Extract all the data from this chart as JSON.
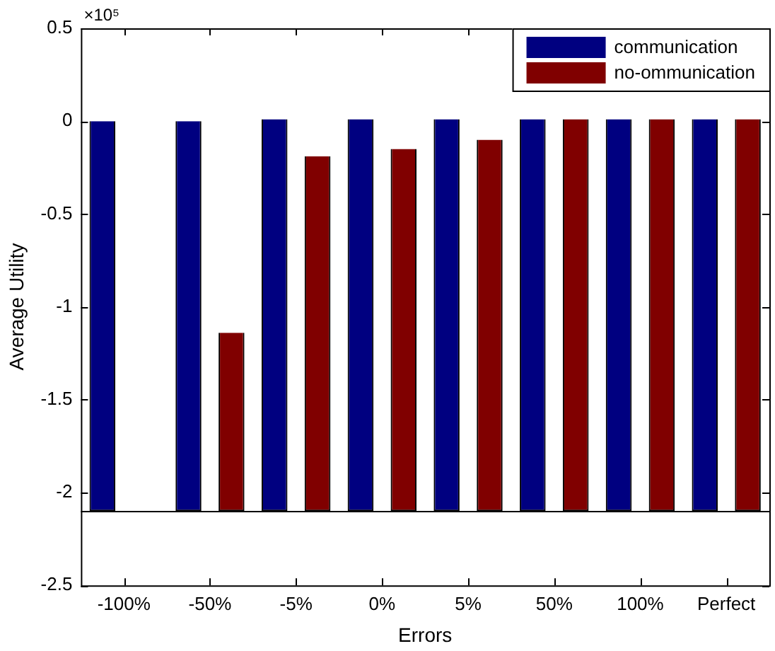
{
  "chart_data": {
    "type": "bar",
    "xlabel": "Errors",
    "ylabel": "Average Utility",
    "annotations": [
      "×10⁵"
    ],
    "categories": [
      "-100%",
      "-50%",
      "-5%",
      "0%",
      "5%",
      "50%",
      "100%",
      "Perfect"
    ],
    "series": [
      {
        "name": "communication",
        "color": "#000080",
        "values": [
          2.1,
          2.1,
          2.11,
          2.11,
          2.11,
          2.11,
          2.11,
          2.11
        ],
        "base": [
          -2.1,
          -2.1,
          -2.1,
          -2.1,
          -2.1,
          -2.1,
          -2.1,
          -2.1
        ]
      },
      {
        "name": "no-ommunication",
        "color": "#800000",
        "values": [
          null,
          0.96,
          1.91,
          1.95,
          2.0,
          2.11,
          2.11,
          2.11
        ],
        "base": [
          null,
          -2.1,
          -2.1,
          -2.1,
          -2.1,
          -2.1,
          -2.1,
          -2.1
        ]
      }
    ],
    "ylim": [
      -2.5,
      0.5
    ],
    "yticks": [
      -2.5,
      -2,
      -1.5,
      -1,
      -0.5,
      0,
      0.5
    ],
    "ref_lines": [
      {
        "axis": "y",
        "value": -2.1,
        "color": "#000000"
      }
    ],
    "legend": "top right",
    "grid": false
  }
}
